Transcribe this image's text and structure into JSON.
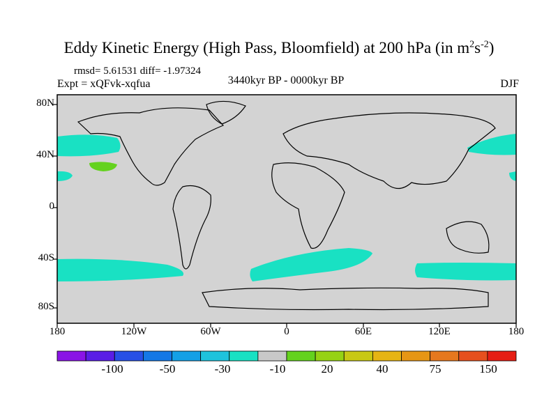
{
  "title": "Eddy Kinetic Energy (High Pass, Bloomfield) at 200 hPa (in m",
  "title_sup1": "2",
  "title_mid": "s",
  "title_sup2": "-2",
  "title_close": ")",
  "stats": "rmsd= 5.61531 diff= -1.97324",
  "expt": "Expt = xQFvk-xqfua",
  "period": "3440kyr BP - 0000kyr BP",
  "season": "DJF",
  "lat_labels": [
    "80N",
    "40N",
    "0",
    "40S",
    "80S"
  ],
  "lon_labels": [
    "180",
    "120W",
    "60W",
    "0",
    "60E",
    "120E",
    "180"
  ],
  "colorbar": {
    "labels": [
      "-100",
      "-50",
      "-30",
      "-10",
      "20",
      "40",
      "75",
      "150"
    ],
    "colors": [
      "#8a14e6",
      "#5a1ee6",
      "#2850e6",
      "#1478e6",
      "#14a0e6",
      "#1ec3dc",
      "#19e1c3",
      "#c8c8c8",
      "#64d21e",
      "#96d214",
      "#c8c814",
      "#e6b414",
      "#e69614",
      "#e6781e",
      "#e6501e",
      "#e61e14"
    ]
  },
  "colors": {
    "land_sea_bg": "#d3d3d3",
    "cyan_region": "#19e1c3",
    "green_region": "#64d21e"
  }
}
